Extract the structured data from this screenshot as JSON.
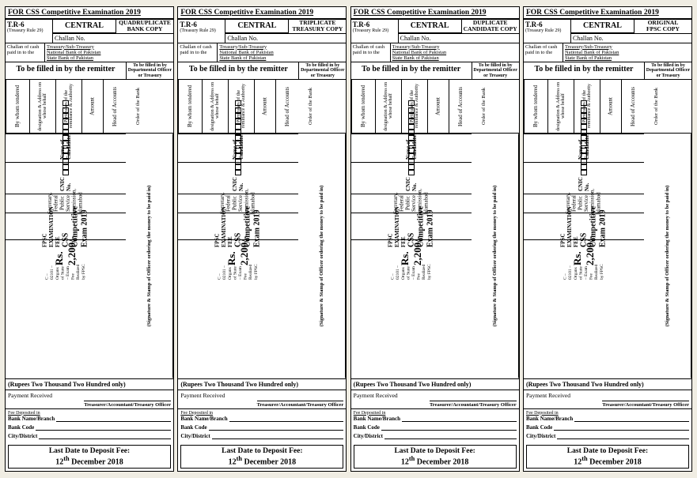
{
  "exam_title": "FOR CSS Competitive Examination 2019",
  "tr6": "T.R-6",
  "tr_rule": "(Treasury Rule 29)",
  "central": "CENTRAL",
  "challan_no_label": "Challan No.",
  "copies": [
    "QUADRUPLICATE BANK COPY",
    "TRIPLICATE TREASURY COPY",
    "DUPLICATE CANDIDATE COPY",
    "ORIGINAL FPSC COPY"
  ],
  "cash_label": "Challan of cash paid in to the",
  "cash_lines": [
    "Treasury/Sub-Treasury",
    "National Bank of Pakistan",
    "State Bank of Pakistan"
  ],
  "fill_by": "To be filled in by the remitter",
  "fill_right": "To be filled in by Departmental Officer or Treasury",
  "cols": [
    "By whom tendered",
    "designation & Address on whose behalf",
    "Particulars of the remittance & Authority",
    "Amount",
    "Head of Accounts",
    "Order of the Bank"
  ],
  "name_label": "Name of Candidate:",
  "cnic_label": "CNIC No.",
  "secretary": "Secretary,\nFederal Public Service Commission, Islamabad",
  "fee_l1": "FPSC   EXAMINATION   FEE",
  "fee_l2": "CSS Competitive Exam 2019",
  "amount": "Rs. 2,200/-",
  "code": "C – 02101 – Organs of State – Exam Fee Realized by FPSC",
  "sig": "(Signature & Stamp of Officer ordering the money to be paid in)",
  "rupees": "(Rupees Two Thousand Two Hundred only)",
  "pay_rec": "Payment  Received",
  "treasurer": "Treasurer/Accountant/Treasury Officer",
  "fee_dep": "Fee Deposited in",
  "bank_name": "Bank Name/Branch",
  "bank_code": "Bank Code",
  "city": "City/District",
  "last_t": "Last Date to Deposit Fee:",
  "last_d": "12th December 2018"
}
